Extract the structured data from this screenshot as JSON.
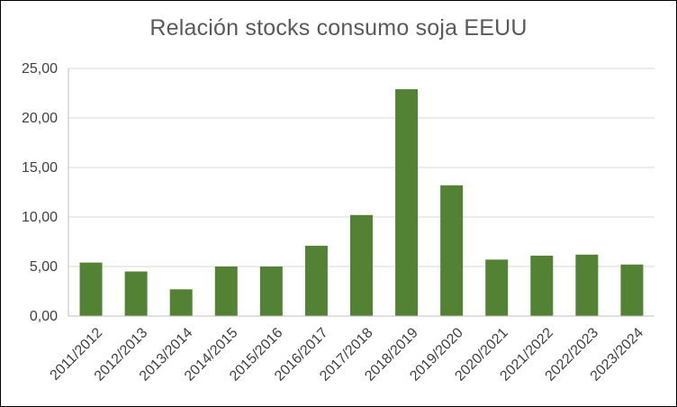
{
  "chart_data": {
    "type": "bar",
    "title": "Relación stocks consumo soja EEUU",
    "xlabel": "",
    "ylabel": "",
    "categories": [
      "2011/2012",
      "2012/2013",
      "2013/2014",
      "2014/2015",
      "2015/2016",
      "2016/2017",
      "2017/2018",
      "2018/2019",
      "2019/2020",
      "2020/2021",
      "2021/2022",
      "2022/2023",
      "2023/2024"
    ],
    "values": [
      5.4,
      4.5,
      2.7,
      5.0,
      5.0,
      7.1,
      10.2,
      22.9,
      13.2,
      5.7,
      6.1,
      6.2,
      5.2
    ],
    "ylim": [
      0,
      25
    ],
    "yticks": [
      "0,00",
      "5,00",
      "10,00",
      "15,00",
      "20,00",
      "25,00"
    ],
    "grid": true,
    "legend": "none",
    "bar_color": "#548235",
    "grid_color": "#d9d9d9",
    "axis_color": "#bfbfbf"
  }
}
